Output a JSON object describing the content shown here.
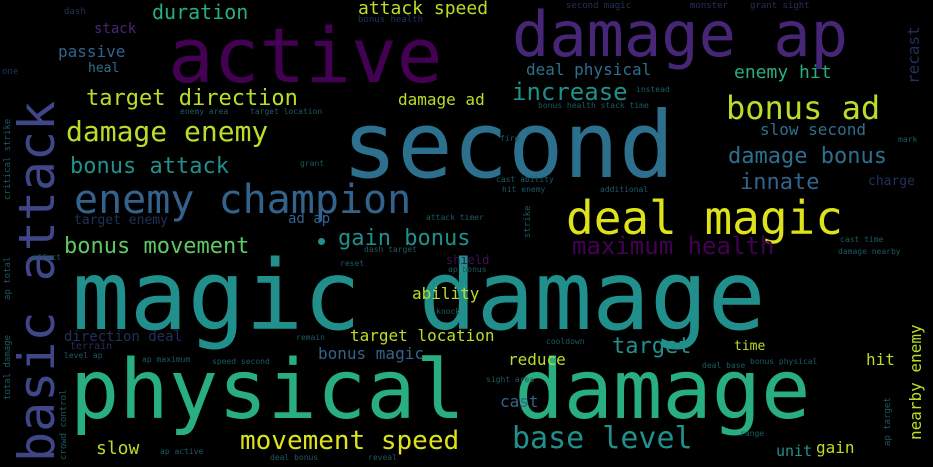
{
  "words": {
    "magic_damage": "magic damage",
    "second": "second",
    "physical_damage": "physical damage",
    "active": "active",
    "damage_ap": "damage ap",
    "basic_attack": "basic attack",
    "deal_magic": "deal magic",
    "enemy_champion": "enemy champion",
    "damage_enemy": "damage enemy",
    "bonus_ad": "bonus ad",
    "base_level": "base level",
    "movement_speed": "movement speed",
    "target_direction": "target direction",
    "bonus_attack": "bonus attack",
    "bonus_movement": "bonus movement",
    "gain_bonus": "gain bonus",
    "maximum_health": "maximum health",
    "damage_bonus": "damage bonus",
    "increase": "increase",
    "innate": "innate",
    "enemy_hit": "enemy hit",
    "target": "target",
    "duration": "duration",
    "attack_speed": "attack speed",
    "deal_physical": "deal physical",
    "damage_ad": "damage ad",
    "slow_second": "slow second",
    "target_location": "target location",
    "ability": "ability",
    "reduce": "reduce",
    "bonus_magic": "bonus magic",
    "passive": "passive",
    "stack": "stack",
    "heal": "heal",
    "slow": "slow",
    "cast": "cast",
    "gain": "gain",
    "unit": "unit",
    "time": "time",
    "hit": "hit",
    "ad_ap": "ad ap",
    "target_enemy": "target enemy",
    "recast": "recast",
    "nearby_enemy": "nearby enemy",
    "dash": "dash",
    "bonus_health": "bonus health",
    "second_magic": "second magic",
    "monster": "monster",
    "grant_sight": "grant sight",
    "charge": "charge",
    "direction_deal": "direction deal",
    "shield": "shield",
    "terrain": "terrain",
    "cooldown": "cooldown",
    "critical_strike": "critical strike",
    "total_damage": "total damage",
    "ap_total": "ap total",
    "crowd_control": "crowd control",
    "effect": "effect",
    "reset": "reset",
    "knock": "knock",
    "remain": "remain",
    "fire": "fire",
    "strike": "strike",
    "additional": "additional",
    "mark": "mark",
    "grant": "grant",
    "instead": "instead",
    "ap_bonus": "ap bonus",
    "sight_area": "sight area",
    "deal_base": "deal base",
    "bonus_physical": "bonus physical",
    "level_ap": "level ap",
    "ap_maximum": "ap maximum",
    "speed_second": "speed second",
    "cast_ability": "cast ability",
    "hit_enemy": "hit enemy",
    "attack_timer": "attack timer",
    "dash_target": "dash target",
    "cast_time": "cast time",
    "damage_nearby": "damage nearby",
    "ap_active": "ap active",
    "deal_bonus": "deal bonus",
    "reveal": "reveal",
    "ap_target": "ap target",
    "range": "range",
    "enemy_area": "enemy area",
    "target_location2": "target location",
    "bonus_health_stack_time": "bonus health stack time",
    "one": "one"
  },
  "colors": {
    "background": "#000000",
    "palette": [
      "#440154",
      "#482677",
      "#3f4788",
      "#33638d",
      "#2d708e",
      "#21908c",
      "#28ae80",
      "#5ec962",
      "#b8de29",
      "#dde318"
    ]
  }
}
